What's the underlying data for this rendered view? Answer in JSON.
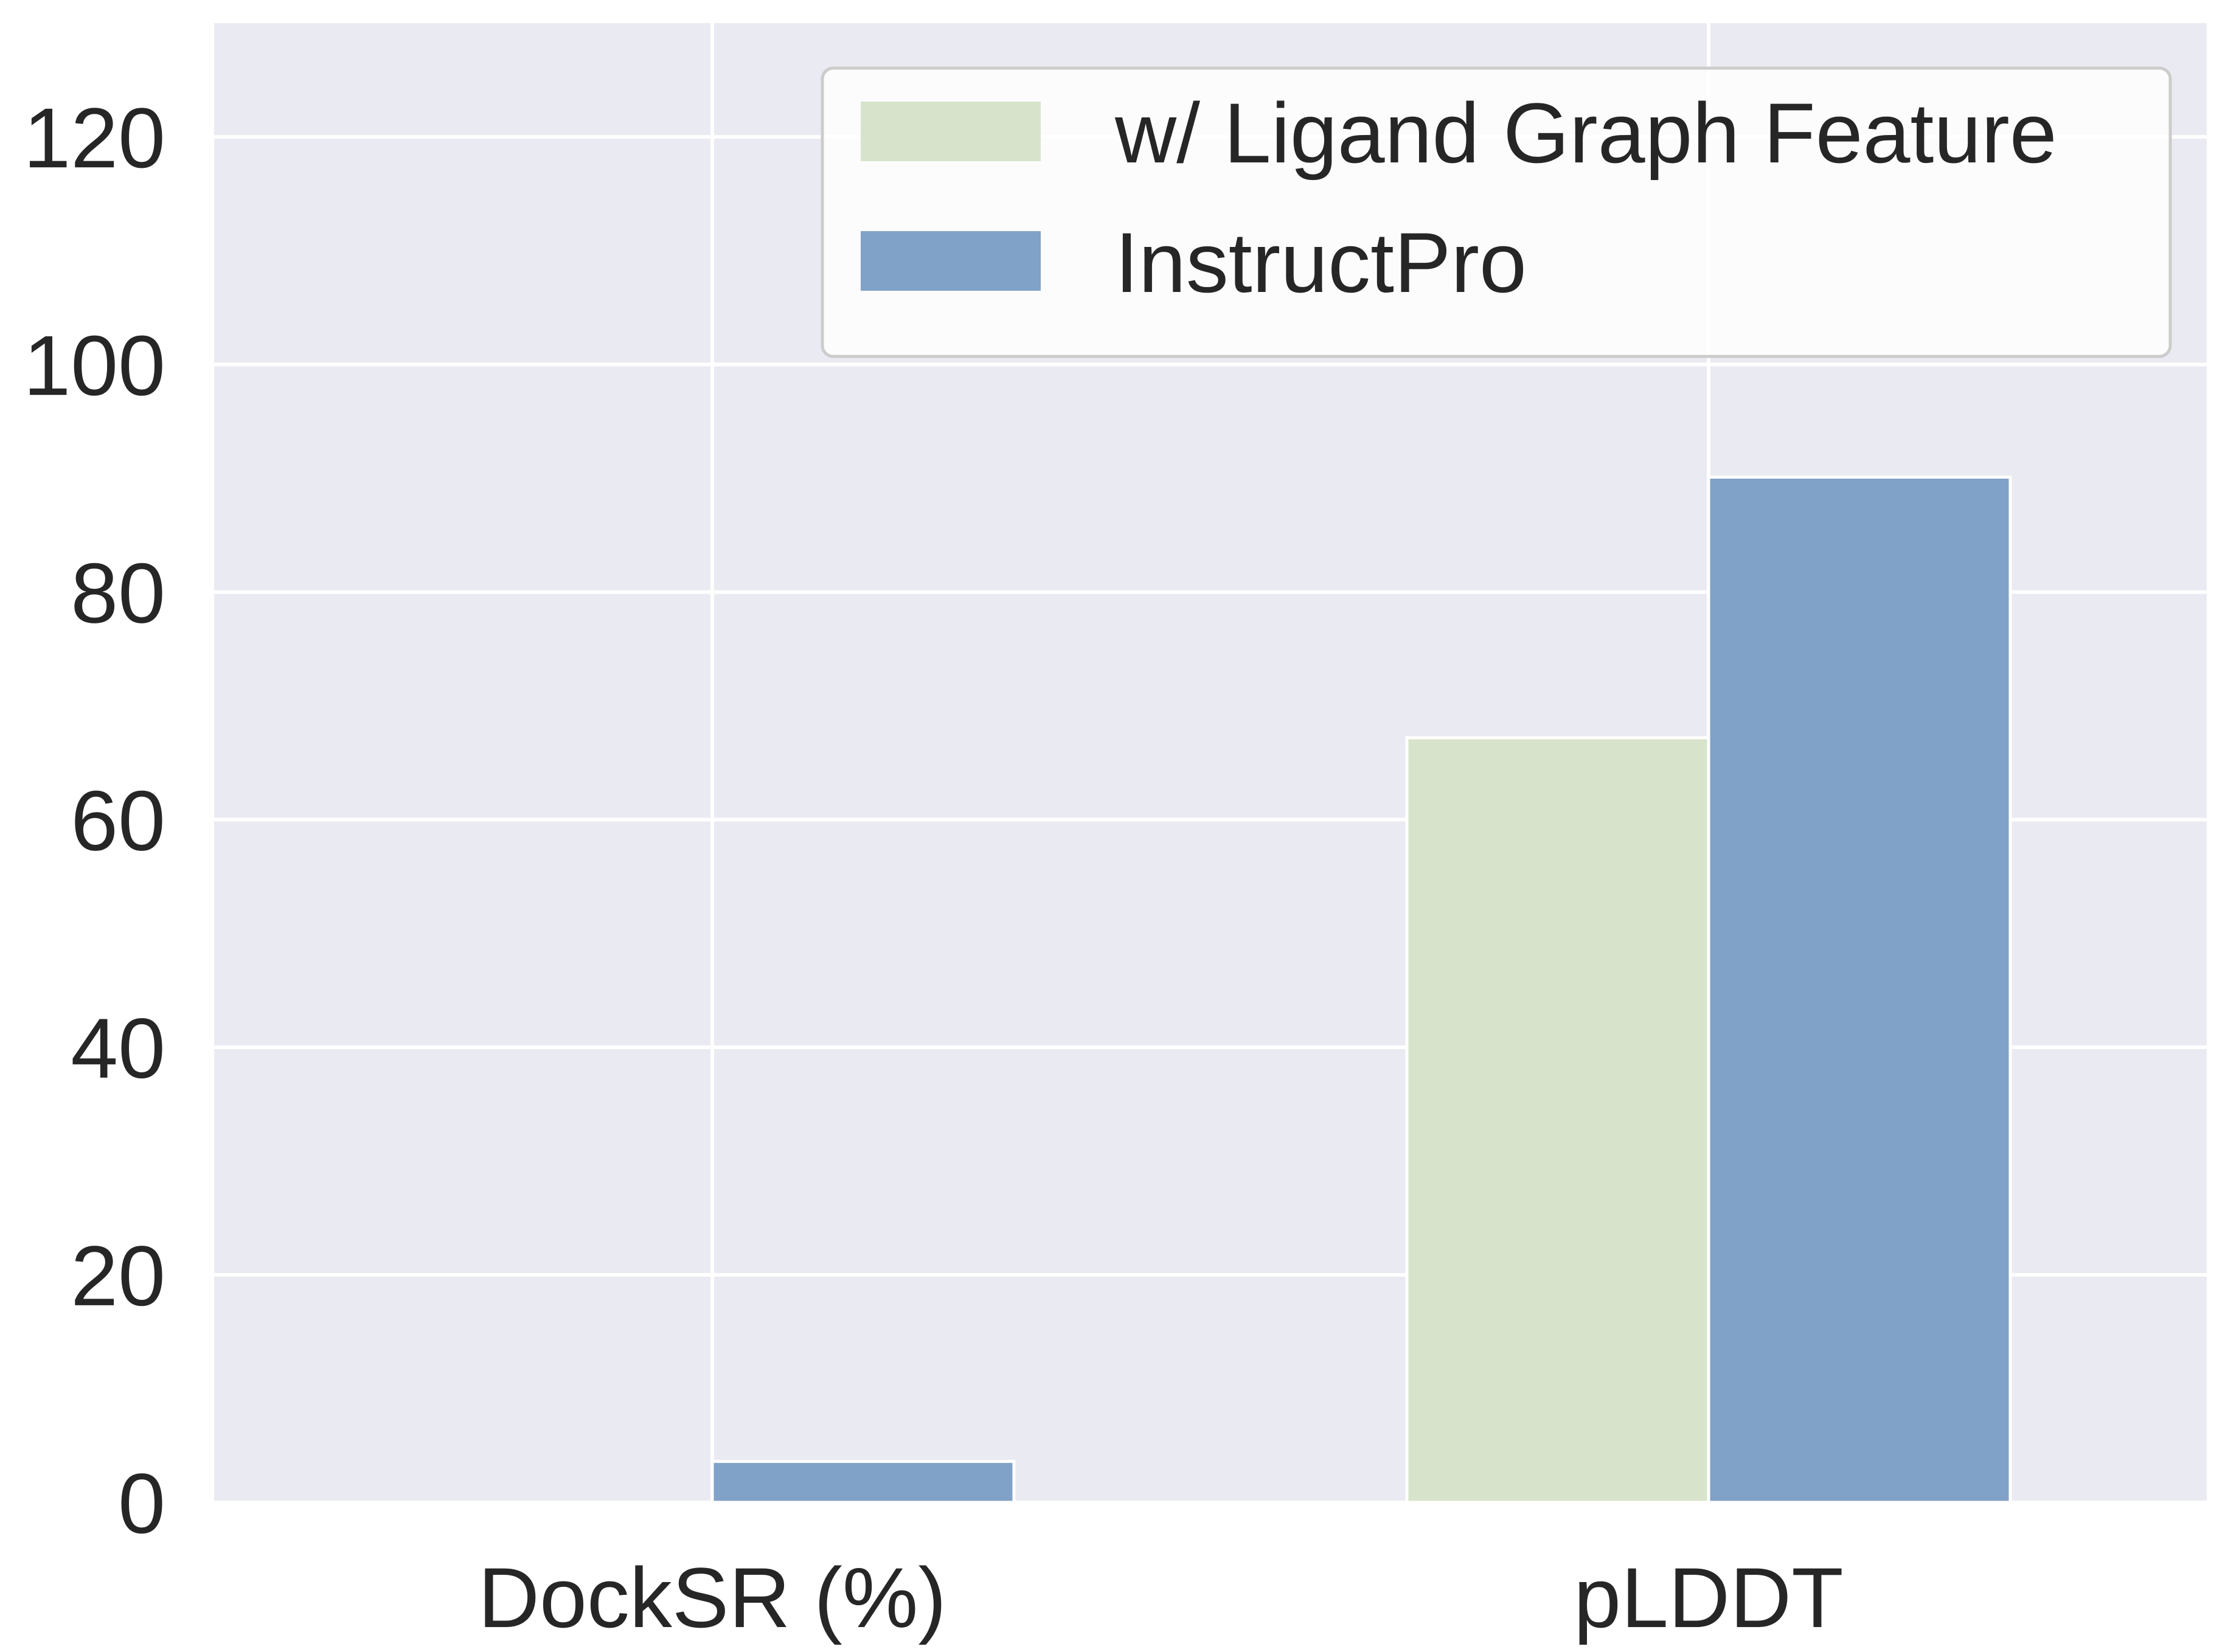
{
  "chart_data": {
    "type": "bar",
    "categories": [
      "DockSR (%)",
      "pLDDT"
    ],
    "series": [
      {
        "name": "w/ Ligand Graph Feature",
        "values": [
          0.0,
          67.2
        ],
        "color": "#d7e4cb"
      },
      {
        "name": "InstructPro",
        "values": [
          3.6,
          90.1
        ],
        "color": "#81a2c8"
      }
    ],
    "title": "",
    "xlabel": "",
    "ylabel": "",
    "ylim": [
      0,
      130
    ],
    "yticks": [
      0,
      20,
      40,
      60,
      80,
      100,
      120
    ],
    "grid": true,
    "legend_position": "top-right",
    "background_color": "#eaeaf2",
    "grid_color": "#ffffff"
  }
}
